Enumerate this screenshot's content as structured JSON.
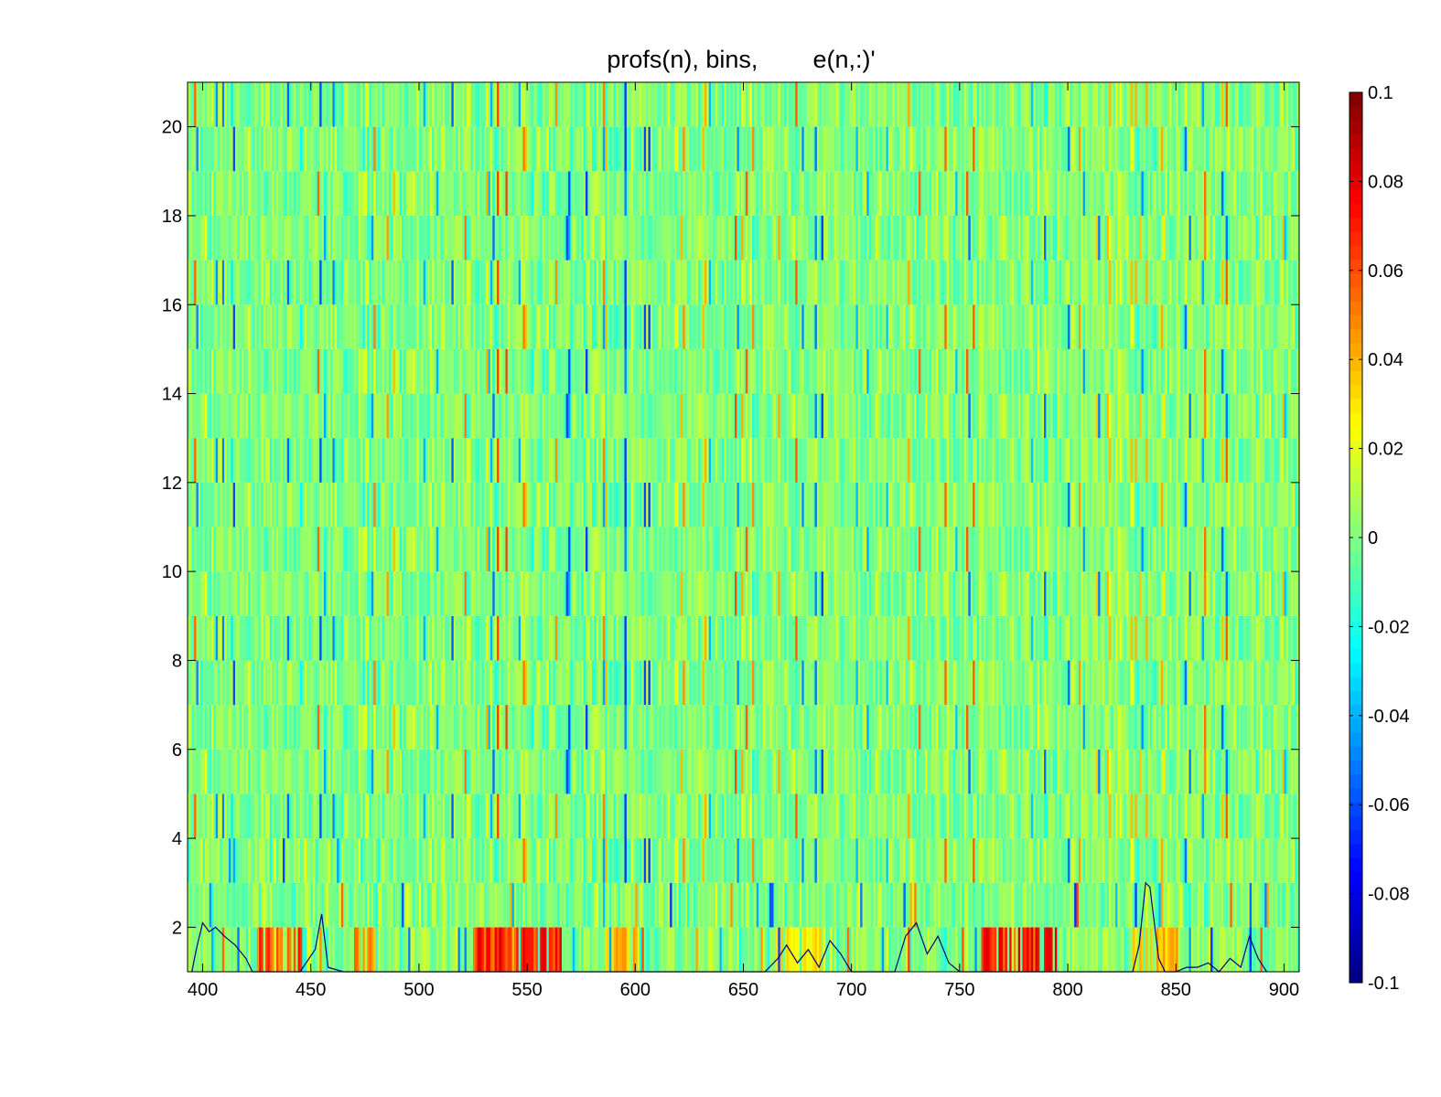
{
  "chart_data": {
    "type": "heatmap",
    "title": "profs(n), bins,        e(n,:)'",
    "x": {
      "min": 393,
      "max": 907,
      "ticks": [
        400,
        450,
        500,
        550,
        600,
        650,
        700,
        750,
        800,
        850,
        900
      ]
    },
    "y": {
      "min": 1,
      "max": 21,
      "rows": 20,
      "ticks": [
        2,
        4,
        6,
        8,
        10,
        12,
        14,
        16,
        18,
        20
      ]
    },
    "colorbar": {
      "colormap": "jet",
      "limits": [
        -0.1,
        0.1
      ],
      "ticks": [
        -0.1,
        -0.08,
        -0.06,
        -0.04,
        -0.02,
        0,
        0.02,
        0.04,
        0.06,
        0.08,
        0.1
      ],
      "tick_labels": [
        "-0.1",
        "-0.08",
        "-0.06",
        "-0.04",
        "-0.02",
        "0",
        "0.02",
        "0.04",
        "0.06",
        "0.08",
        "0.1"
      ]
    },
    "heatmap_description": "Each row n (1-20) shows e(n,:) over bins 393-907 as thin vertical stripes; values mostly between -0.03 and 0.03, row 1 contains strong positive (red) bands near bins 425-445, 525-565, 780-795.",
    "hot_bands_row1": [
      [
        425,
        445,
        0.06
      ],
      [
        470,
        480,
        0.05
      ],
      [
        525,
        565,
        0.07
      ],
      [
        585,
        600,
        0.04
      ],
      [
        665,
        690,
        0.03
      ],
      [
        760,
        795,
        0.07
      ],
      [
        830,
        850,
        0.04
      ]
    ],
    "overlay_profile": {
      "color": "#000080",
      "x": [
        395,
        397,
        400,
        403,
        406,
        410,
        415,
        420,
        423,
        428,
        445,
        452,
        455,
        458,
        465,
        470,
        660,
        666,
        670,
        675,
        680,
        685,
        690,
        695,
        700,
        705,
        720,
        725,
        730,
        735,
        740,
        745,
        750,
        755,
        830,
        833,
        836,
        838,
        842,
        845,
        850,
        855,
        860,
        865,
        870,
        875,
        880,
        884,
        888,
        892
      ],
      "y": [
        1.0,
        1.5,
        2.1,
        1.9,
        2.0,
        1.8,
        1.6,
        1.3,
        1.0,
        1.0,
        1.0,
        1.5,
        2.3,
        1.1,
        1.0,
        1.0,
        1.0,
        1.3,
        1.6,
        1.2,
        1.5,
        1.1,
        1.7,
        1.4,
        1.0,
        1.0,
        1.0,
        1.8,
        2.1,
        1.4,
        1.8,
        1.2,
        1.0,
        1.0,
        1.0,
        1.6,
        3.0,
        2.9,
        1.3,
        1.0,
        1.0,
        1.1,
        1.1,
        1.2,
        1.0,
        1.3,
        1.1,
        1.8,
        1.3,
        1.0
      ]
    }
  }
}
